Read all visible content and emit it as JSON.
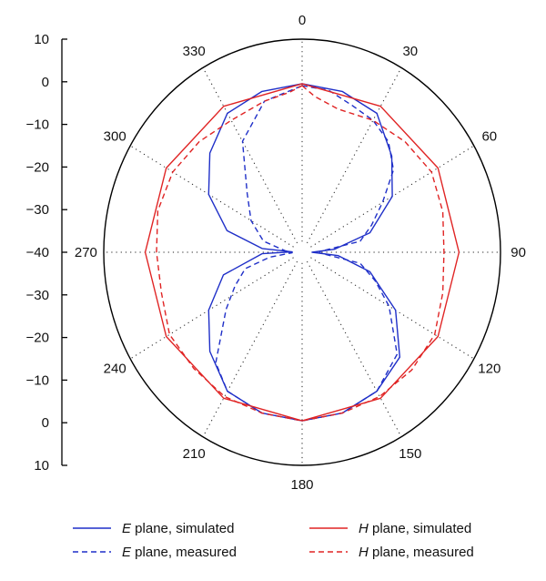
{
  "chart_data": {
    "type": "polar-line",
    "angle_ticks": [
      "0",
      "30",
      "60",
      "90",
      "120",
      "150",
      "180",
      "210",
      "240",
      "270",
      "300",
      "330"
    ],
    "radial_axis": {
      "tick_labels": [
        "10",
        "0",
        "−10",
        "−20",
        "−30",
        "−40",
        "−30",
        "−20",
        "−10",
        "0",
        "10"
      ],
      "range_db": [
        -40,
        10
      ]
    },
    "grid": true,
    "legend": {
      "placement": "bottom",
      "entries": [
        {
          "series": 0,
          "italic": "E",
          "text": " plane, simulated"
        },
        {
          "series": 1,
          "italic": "E",
          "text": " plane, measured"
        },
        {
          "series": 2,
          "italic": "H",
          "text": " plane, simulated"
        },
        {
          "series": 3,
          "italic": "H",
          "text": " plane, measured"
        }
      ]
    },
    "colors": {
      "blue": "#1f2fc8",
      "red": "#e02424"
    },
    "series": [
      {
        "color": "#1f2fc8",
        "dash": "solid",
        "points": [
          [
            0,
            -1
          ],
          [
            15,
            -1.5
          ],
          [
            30,
            -3
          ],
          [
            45,
            -9
          ],
          [
            60,
            -15
          ],
          [
            75,
            -24
          ],
          [
            85,
            -34
          ],
          [
            90,
            -40
          ],
          [
            95,
            -33
          ],
          [
            105,
            -24
          ],
          [
            120,
            -14
          ],
          [
            135,
            -6
          ],
          [
            150,
            -3
          ],
          [
            165,
            -1.5
          ],
          [
            180,
            -1
          ],
          [
            195,
            -1.5
          ],
          [
            210,
            -3
          ],
          [
            225,
            -8
          ],
          [
            240,
            -14
          ],
          [
            255,
            -21
          ],
          [
            268,
            -32
          ],
          [
            272,
            -40
          ],
          [
            275,
            -32
          ],
          [
            285,
            -22
          ],
          [
            300,
            -14
          ],
          [
            315,
            -8
          ],
          [
            330,
            -3
          ],
          [
            345,
            -1.5
          ],
          [
            360,
            -1
          ]
        ]
      },
      {
        "color": "#1f2fc8",
        "dash": "dashed",
        "points": [
          [
            0,
            -1.5
          ],
          [
            10,
            -2
          ],
          [
            20,
            -4
          ],
          [
            30,
            -5
          ],
          [
            40,
            -7
          ],
          [
            50,
            -11
          ],
          [
            60,
            -18
          ],
          [
            70,
            -23
          ],
          [
            80,
            -27
          ],
          [
            88,
            -38
          ],
          [
            92,
            -38
          ],
          [
            100,
            -27
          ],
          [
            110,
            -22
          ],
          [
            120,
            -16
          ],
          [
            135,
            -7
          ],
          [
            150,
            -3
          ],
          [
            165,
            -1.5
          ],
          [
            180,
            -1
          ],
          [
            195,
            -1.5
          ],
          [
            210,
            -3
          ],
          [
            220,
            -7
          ],
          [
            235,
            -18
          ],
          [
            245,
            -23
          ],
          [
            255,
            -27
          ],
          [
            262,
            -34
          ],
          [
            267,
            -40
          ],
          [
            275,
            -38
          ],
          [
            285,
            -32
          ],
          [
            300,
            -27
          ],
          [
            315,
            -22
          ],
          [
            330,
            -11
          ],
          [
            345,
            -4
          ],
          [
            360,
            -1.5
          ]
        ]
      },
      {
        "color": "#e02424",
        "dash": "solid",
        "points": [
          [
            0,
            -1
          ],
          [
            30,
            -1
          ],
          [
            60,
            -1
          ],
          [
            90,
            -1
          ],
          [
            120,
            -1
          ],
          [
            150,
            -1
          ],
          [
            180,
            -1
          ],
          [
            210,
            -1
          ],
          [
            240,
            -1
          ],
          [
            270,
            -1
          ],
          [
            300,
            -1
          ],
          [
            330,
            -1
          ],
          [
            360,
            -1
          ]
        ]
      },
      {
        "color": "#e02424",
        "dash": "dashed",
        "points": [
          [
            0,
            -1.5
          ],
          [
            5,
            -4
          ],
          [
            15,
            -6
          ],
          [
            30,
            -5
          ],
          [
            45,
            -4
          ],
          [
            60,
            -3
          ],
          [
            75,
            -4
          ],
          [
            90,
            -5
          ],
          [
            105,
            -4
          ],
          [
            120,
            -2
          ],
          [
            135,
            -1.5
          ],
          [
            150,
            -1.5
          ],
          [
            165,
            -1.5
          ],
          [
            180,
            -1
          ],
          [
            195,
            -1.5
          ],
          [
            210,
            -1.5
          ],
          [
            225,
            -2
          ],
          [
            240,
            -2
          ],
          [
            255,
            -4
          ],
          [
            270,
            -4
          ],
          [
            285,
            -3
          ],
          [
            300,
            -3
          ],
          [
            315,
            -4
          ],
          [
            330,
            -5
          ],
          [
            345,
            -4
          ],
          [
            355,
            -3
          ],
          [
            360,
            -1.5
          ]
        ]
      }
    ]
  }
}
